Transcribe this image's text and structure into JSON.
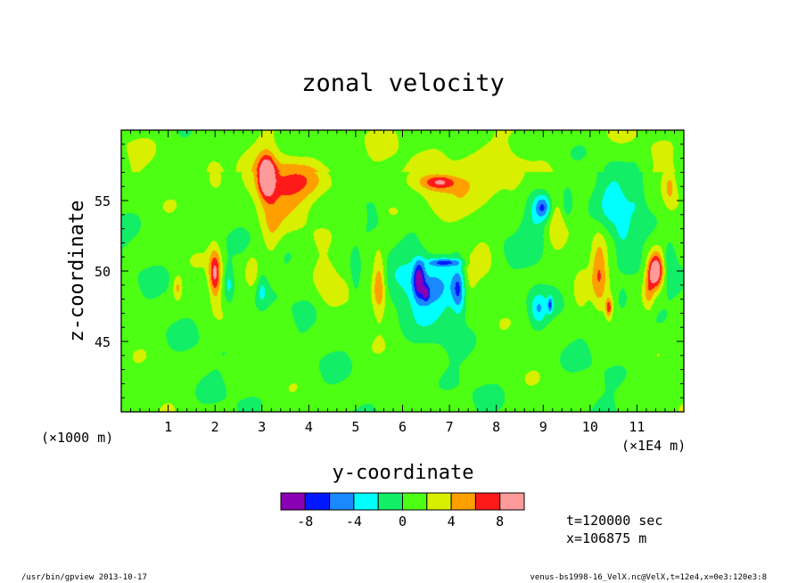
{
  "chart_data": {
    "type": "heatmap",
    "title": "zonal velocity",
    "xlabel": "y-coordinate",
    "ylabel": "z-coordinate",
    "x_scale_note": "(×1E4 m)",
    "y_scale_note": "(×1000 m)",
    "x_ticks": [
      1,
      2,
      3,
      4,
      5,
      6,
      7,
      8,
      9,
      10,
      11
    ],
    "y_ticks": [
      45,
      50,
      55
    ],
    "xlim": [
      0,
      12
    ],
    "ylim": [
      40,
      60
    ],
    "levels": [
      -10,
      -8,
      -6,
      -4,
      -2,
      0,
      2,
      4,
      6,
      8,
      10
    ],
    "level_labels": [
      "-8",
      "-4",
      "0",
      "4",
      "8"
    ],
    "level_label_values": [
      -8,
      -4,
      0,
      4,
      8
    ],
    "colors": [
      "#8a00b4",
      "#0018ff",
      "#1a88ff",
      "#00ffff",
      "#12ee66",
      "#4dff12",
      "#d8f000",
      "#ffa000",
      "#ff1a1a",
      "#ff9a9a"
    ],
    "features": [
      {
        "y": 3.1,
        "z": 56.7,
        "amp": 9.5,
        "sy": 0.12,
        "sz": 1.0
      },
      {
        "y": 3.4,
        "z": 55.6,
        "amp": 3.8,
        "sy": 0.5,
        "sz": 1.6
      },
      {
        "y": 4.0,
        "z": 56.5,
        "amp": 2.8,
        "sy": 0.5,
        "sz": 0.9
      },
      {
        "y": 2.0,
        "z": 56.5,
        "amp": 3.5,
        "sy": 0.15,
        "sz": 0.8
      },
      {
        "y": 2.0,
        "z": 49.8,
        "amp": 7.5,
        "sy": 0.09,
        "sz": 1.2
      },
      {
        "y": 2.3,
        "z": 49.0,
        "amp": -3.6,
        "sy": 0.08,
        "sz": 1.0
      },
      {
        "y": 1.2,
        "z": 48.8,
        "amp": 3.8,
        "sy": 0.07,
        "sz": 0.6
      },
      {
        "y": 2.8,
        "z": 50.0,
        "amp": 2.4,
        "sy": 0.1,
        "sz": 1.0
      },
      {
        "y": 3.0,
        "z": 48.6,
        "amp": -2.6,
        "sy": 0.08,
        "sz": 0.8
      },
      {
        "y": 3.2,
        "z": 52.5,
        "amp": 2.2,
        "sy": 0.15,
        "sz": 2.0
      },
      {
        "y": 5.5,
        "z": 49.0,
        "amp": 5.5,
        "sy": 0.1,
        "sz": 1.5
      },
      {
        "y": 5.0,
        "z": 49.5,
        "amp": -2.6,
        "sy": 0.08,
        "sz": 1.2
      },
      {
        "y": 5.1,
        "z": 53.8,
        "amp": 2.5,
        "sy": 0.1,
        "sz": 0.5
      },
      {
        "y": 4.4,
        "z": 49.0,
        "amp": 2.4,
        "sy": 0.2,
        "sz": 1.4
      },
      {
        "y": 7.3,
        "z": 56.0,
        "amp": 3.8,
        "sy": 0.8,
        "sz": 1.4
      },
      {
        "y": 6.8,
        "z": 56.3,
        "amp": 5.6,
        "sy": 0.25,
        "sz": 0.35
      },
      {
        "y": 6.1,
        "z": 55.0,
        "amp": -3.0,
        "sy": 0.3,
        "sz": 0.8
      },
      {
        "y": 5.8,
        "z": 54.3,
        "amp": 2.2,
        "sy": 0.2,
        "sz": 0.5
      },
      {
        "y": 6.6,
        "z": 48.8,
        "amp": -4.7,
        "sy": 0.5,
        "sz": 1.8
      },
      {
        "y": 6.35,
        "z": 49.4,
        "amp": -7.2,
        "sy": 0.08,
        "sz": 0.9
      },
      {
        "y": 7.2,
        "z": 48.7,
        "amp": -6.0,
        "sy": 0.1,
        "sz": 1.2
      },
      {
        "y": 6.9,
        "z": 50.6,
        "amp": -6.0,
        "sy": 0.25,
        "sz": 0.2
      },
      {
        "y": 6.5,
        "z": 48.4,
        "amp": -5.5,
        "sy": 0.05,
        "sz": 0.35
      },
      {
        "y": 7.7,
        "z": 51.3,
        "amp": 2.4,
        "sy": 0.15,
        "sz": 1.0
      },
      {
        "y": 7.4,
        "z": 49.5,
        "amp": 2.2,
        "sy": 0.15,
        "sz": 1.2
      },
      {
        "y": 8.8,
        "z": 54.0,
        "amp": -2.8,
        "sy": 0.2,
        "sz": 2.0
      },
      {
        "y": 9.0,
        "z": 54.5,
        "amp": -6.0,
        "sy": 0.12,
        "sz": 0.6
      },
      {
        "y": 9.3,
        "z": 53.5,
        "amp": 2.2,
        "sy": 0.15,
        "sz": 1.6
      },
      {
        "y": 9.5,
        "z": 54.5,
        "amp": -2.7,
        "sy": 0.1,
        "sz": 1.0
      },
      {
        "y": 8.9,
        "z": 47.3,
        "amp": -3.8,
        "sy": 0.12,
        "sz": 0.8
      },
      {
        "y": 9.15,
        "z": 47.6,
        "amp": -5.5,
        "sy": 0.04,
        "sz": 0.4
      },
      {
        "y": 9.8,
        "z": 48.5,
        "amp": 2.3,
        "sy": 0.1,
        "sz": 1.0
      },
      {
        "y": 10.2,
        "z": 50.0,
        "amp": 4.5,
        "sy": 0.12,
        "sz": 2.0
      },
      {
        "y": 10.4,
        "z": 47.4,
        "amp": 6.0,
        "sy": 0.05,
        "sz": 0.5
      },
      {
        "y": 10.5,
        "z": 55.0,
        "amp": -2.7,
        "sy": 0.25,
        "sz": 2.0
      },
      {
        "y": 10.7,
        "z": 53.0,
        "amp": -2.6,
        "sy": 0.1,
        "sz": 1.0
      },
      {
        "y": 10.7,
        "z": 48.0,
        "amp": -2.6,
        "sy": 0.08,
        "sz": 0.6
      },
      {
        "y": 11.4,
        "z": 50.0,
        "amp": 11.0,
        "sy": 0.12,
        "sz": 0.9
      },
      {
        "y": 11.25,
        "z": 48.5,
        "amp": 3.5,
        "sy": 0.08,
        "sz": 1.0
      },
      {
        "y": 11.0,
        "z": 55.5,
        "amp": -2.7,
        "sy": 0.15,
        "sz": 1.5
      },
      {
        "y": 11.7,
        "z": 56.0,
        "amp": 3.5,
        "sy": 0.1,
        "sz": 1.0
      },
      {
        "y": 11.7,
        "z": 51.0,
        "amp": -2.5,
        "sy": 0.1,
        "sz": 1.0
      }
    ]
  },
  "info": {
    "time": "t=120000 sec",
    "position": "x=106875 m"
  },
  "footer": {
    "left": "/usr/bin/gpview  2013-10-17",
    "right": "venus-bs1998-16_VelX.nc@VelX,t=12e4,x=0e3:120e3:8"
  }
}
